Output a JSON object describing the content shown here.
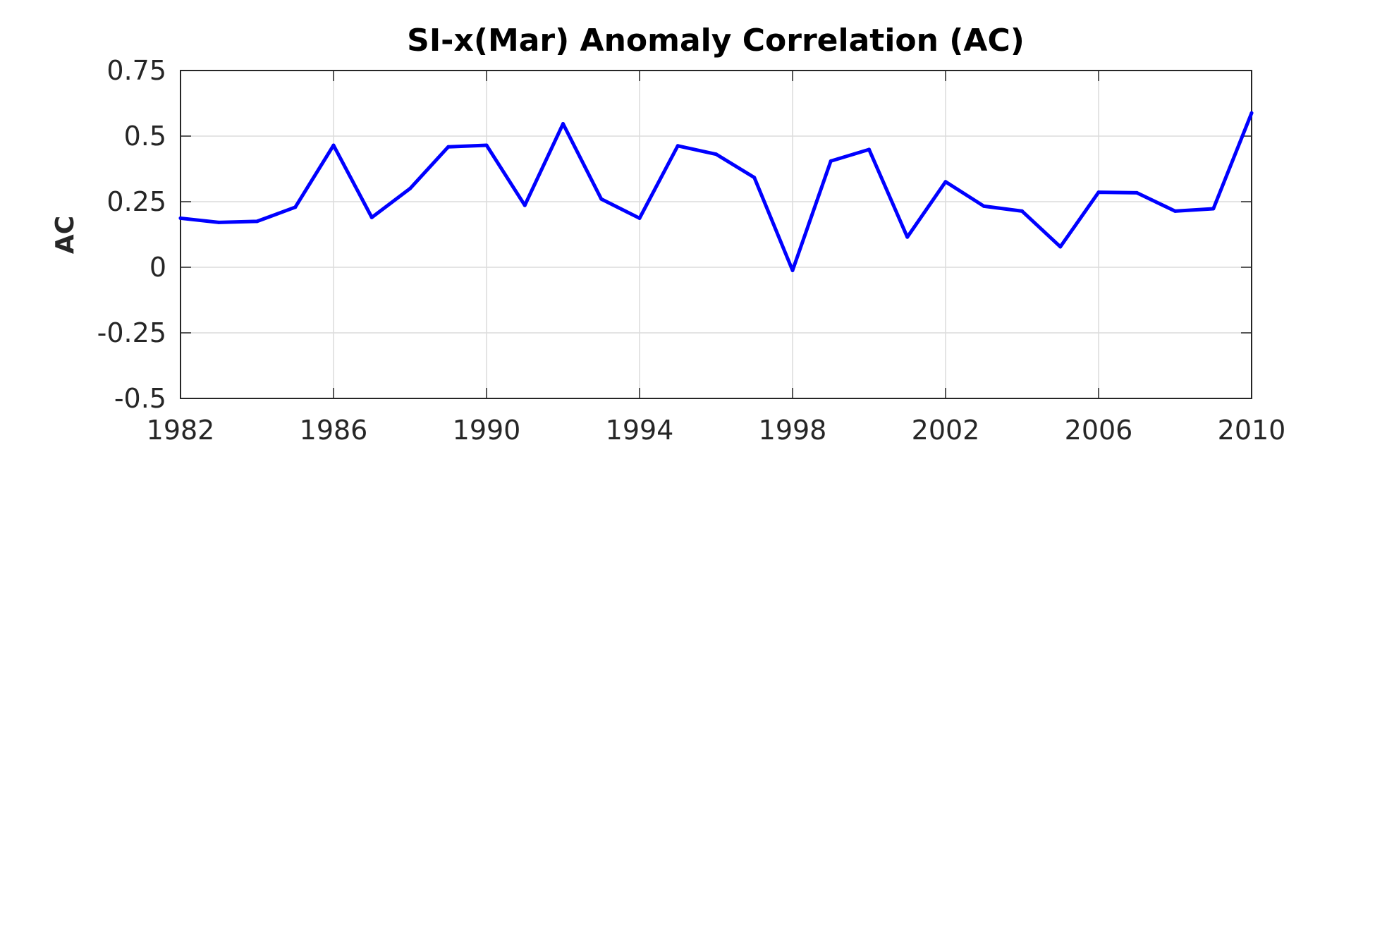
{
  "chart_data": {
    "type": "line",
    "title": "SI-x(Mar) Anomaly Correlation (AC)",
    "xlabel": "",
    "ylabel": "AC",
    "xlim": [
      1982,
      2010
    ],
    "ylim": [
      -0.5,
      0.75
    ],
    "xticks": [
      1982,
      1986,
      1990,
      1994,
      1998,
      2002,
      2006,
      2010
    ],
    "xtick_labels": [
      "1982",
      "1986",
      "1990",
      "1994",
      "1998",
      "2002",
      "2006",
      "2010"
    ],
    "yticks": [
      -0.5,
      -0.25,
      0,
      0.25,
      0.5,
      0.75
    ],
    "ytick_labels": [
      "-0.5",
      "-0.25",
      "0",
      "0.25",
      "0.5",
      "0.75"
    ],
    "grid": true,
    "series": [
      {
        "name": "AC",
        "color": "#0000ff",
        "x": [
          1982,
          1983,
          1984,
          1985,
          1986,
          1987,
          1988,
          1989,
          1990,
          1991,
          1992,
          1993,
          1994,
          1995,
          1996,
          1997,
          1998,
          1999,
          2000,
          2001,
          2002,
          2003,
          2004,
          2005,
          2006,
          2007,
          2008,
          2009,
          2010
        ],
        "values": [
          0.187,
          0.171,
          0.175,
          0.229,
          0.465,
          0.19,
          0.3,
          0.459,
          0.465,
          0.236,
          0.547,
          0.26,
          0.187,
          0.463,
          0.431,
          0.342,
          -0.012,
          0.405,
          0.449,
          0.115,
          0.326,
          0.233,
          0.214,
          0.078,
          0.286,
          0.284,
          0.214,
          0.223,
          0.588
        ]
      }
    ]
  }
}
